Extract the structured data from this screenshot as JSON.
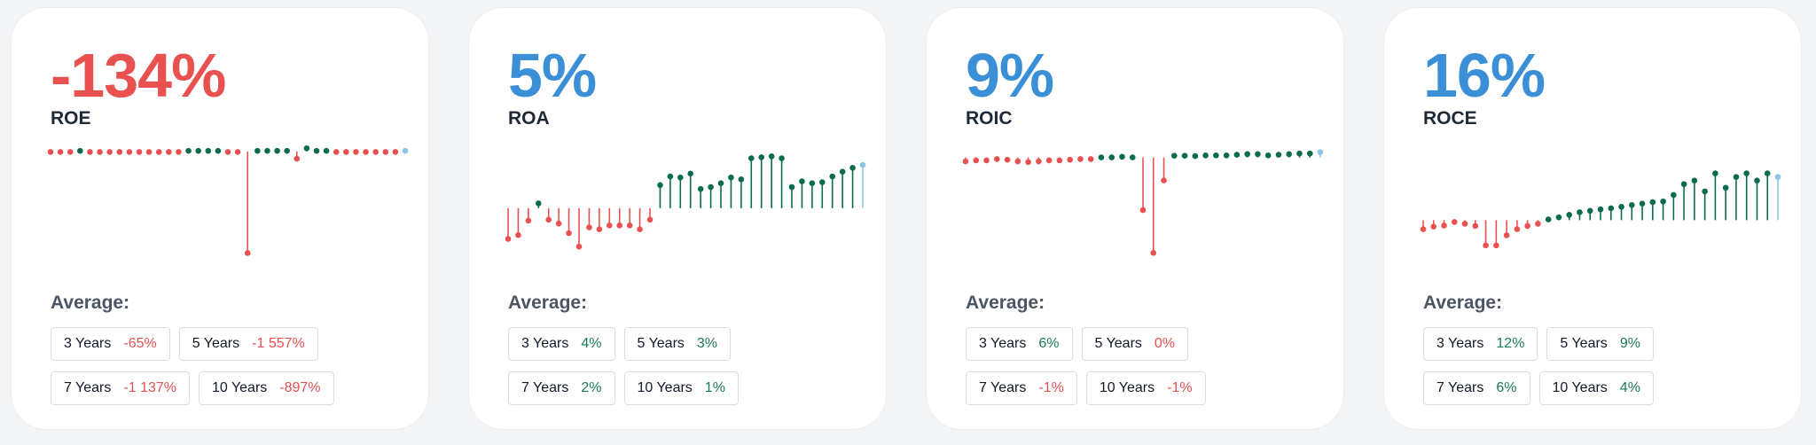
{
  "colors": {
    "negative": "#e8514f",
    "positive": "#0b6b4f",
    "latest": "#8cc4e6",
    "value_blue": "#3a8fd6",
    "value_red": "#e8514f"
  },
  "average_label": "Average:",
  "cards": [
    {
      "label": "ROE",
      "value": "-134%",
      "value_color": "#e8514f",
      "averages": [
        {
          "period": "3 Years",
          "value": "-65%",
          "sign": "neg"
        },
        {
          "period": "5 Years",
          "value": "-1 557%",
          "sign": "neg"
        },
        {
          "period": "7 Years",
          "value": "-1 137%",
          "sign": "neg"
        },
        {
          "period": "10 Years",
          "value": "-897%",
          "sign": "neg"
        }
      ],
      "chart_data": {
        "type": "lollipop",
        "ylim": [
          -100,
          10
        ],
        "baseline": 0,
        "values": [
          -0.5,
          -0.5,
          -0.5,
          0.5,
          -0.5,
          -0.5,
          -0.5,
          -0.5,
          -0.5,
          -0.5,
          -0.5,
          -0.5,
          -0.5,
          -0.5,
          0.5,
          0.5,
          0.5,
          0.5,
          -0.5,
          -0.5,
          -97,
          0.5,
          0.5,
          0.5,
          0.5,
          -7,
          3,
          0.5,
          0.5,
          -0.5,
          -0.5,
          -0.5,
          -0.5,
          -0.5,
          -0.5,
          -0.5,
          0.5
        ]
      }
    },
    {
      "label": "ROA",
      "value": "5%",
      "value_color": "#3a8fd6",
      "averages": [
        {
          "period": "3 Years",
          "value": "4%",
          "sign": "pos"
        },
        {
          "period": "5 Years",
          "value": "3%",
          "sign": "pos"
        },
        {
          "period": "7 Years",
          "value": "2%",
          "sign": "pos"
        },
        {
          "period": "10 Years",
          "value": "1%",
          "sign": "pos"
        }
      ],
      "chart_data": {
        "type": "lollipop",
        "ylim": [
          -5,
          7
        ],
        "baseline": 0,
        "values": [
          -3.2,
          -2.8,
          -1.3,
          0.5,
          -1.2,
          -1.6,
          -2.6,
          -4.0,
          -2.0,
          -2.2,
          -1.8,
          -1.8,
          -1.8,
          -2.2,
          -1.2,
          2.4,
          3.3,
          3.2,
          3.6,
          2.0,
          2.2,
          2.6,
          3.2,
          3.0,
          5.2,
          5.3,
          5.4,
          5.2,
          2.2,
          2.8,
          2.6,
          2.7,
          3.3,
          3.8,
          4.2,
          4.5
        ]
      }
    },
    {
      "label": "ROIC",
      "value": "9%",
      "value_color": "#3a8fd6",
      "averages": [
        {
          "period": "3 Years",
          "value": "6%",
          "sign": "pos"
        },
        {
          "period": "5 Years",
          "value": "0%",
          "sign": "neg"
        },
        {
          "period": "7 Years",
          "value": "-1%",
          "sign": "neg"
        },
        {
          "period": "10 Years",
          "value": "-1%",
          "sign": "neg"
        }
      ],
      "chart_data": {
        "type": "lollipop",
        "ylim": [
          -30,
          5
        ],
        "baseline": 0,
        "values": [
          -1.2,
          -0.9,
          -0.9,
          -0.5,
          -0.7,
          -1.2,
          -1.4,
          -1.2,
          -0.9,
          -0.9,
          -0.7,
          -0.5,
          -0.5,
          0.0,
          0.0,
          0.2,
          0.0,
          -16,
          -29,
          -7,
          0.5,
          0.5,
          0.4,
          0.6,
          0.6,
          0.6,
          0.8,
          1.0,
          1.0,
          0.6,
          0.8,
          1.0,
          1.2,
          1.2,
          1.6
        ]
      }
    },
    {
      "label": "ROCE",
      "value": "16%",
      "value_color": "#3a8fd6",
      "averages": [
        {
          "period": "3 Years",
          "value": "12%",
          "sign": "pos"
        },
        {
          "period": "5 Years",
          "value": "9%",
          "sign": "pos"
        },
        {
          "period": "7 Years",
          "value": "6%",
          "sign": "pos"
        },
        {
          "period": "10 Years",
          "value": "4%",
          "sign": "pos"
        }
      ],
      "chart_data": {
        "type": "lollipop",
        "ylim": [
          -10,
          22
        ],
        "baseline": 0,
        "values": [
          -2.5,
          -1.8,
          -1.5,
          -0.5,
          -1.0,
          -1.6,
          -7,
          -7,
          -4.2,
          -2.5,
          -1.6,
          -1.0,
          0.2,
          0.8,
          1.5,
          2.2,
          2.6,
          3.0,
          3.3,
          3.7,
          4.2,
          4.6,
          5.0,
          5.2,
          7.0,
          10.0,
          11.0,
          8.0,
          13.0,
          9.0,
          12.0,
          13.0,
          11.0,
          13.0,
          12.0
        ]
      }
    }
  ]
}
